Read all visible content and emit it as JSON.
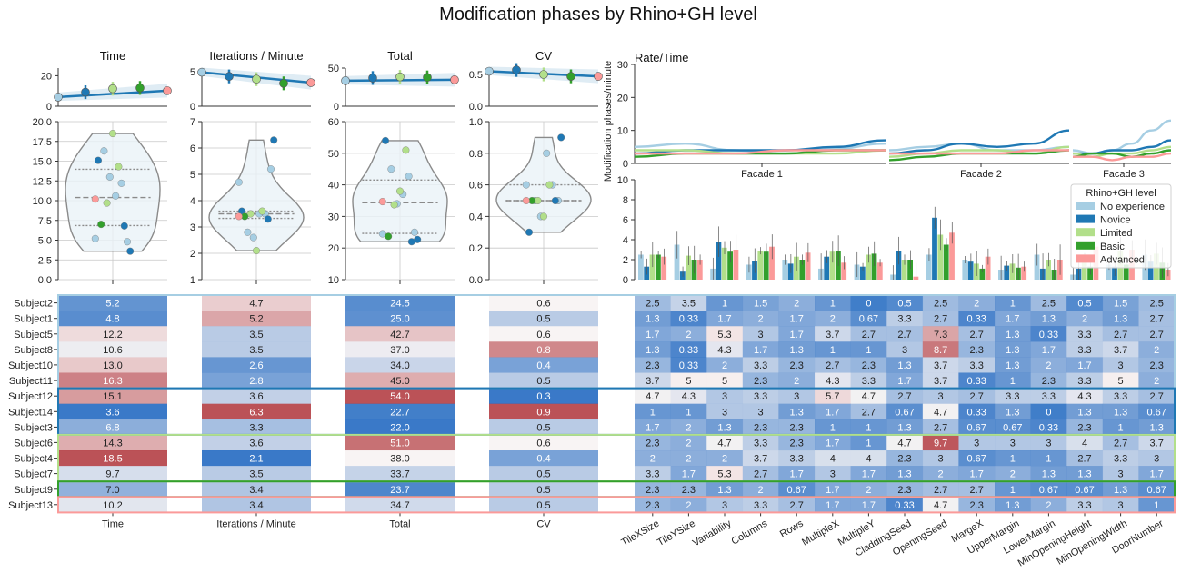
{
  "title": "Modification phases by Rhino+GH level",
  "colors": {
    "No experience": "#a6cee3",
    "Novice": "#1f78b4",
    "Limited": "#b2df8a",
    "Basic": "#33a02c",
    "Advanced": "#fb9a99"
  },
  "legend": {
    "title": "Rhino+GH level",
    "entries": [
      "No experience",
      "Novice",
      "Limited",
      "Basic",
      "Advanced"
    ],
    "placement": "right"
  },
  "chart_data": [
    {
      "id": "violins",
      "type": "violin",
      "panels": [
        {
          "title": "Time",
          "top_yticks": [
            "0",
            "20"
          ],
          "top_ylim": [
            0,
            25
          ],
          "bottom_yticks": [
            "0.0",
            "2.5",
            "5.0",
            "7.5",
            "10.0",
            "12.5",
            "15.0",
            "17.5",
            "20.0"
          ],
          "bottom_ylim": [
            0,
            20
          ]
        },
        {
          "title": "Iterations / Minute",
          "top_yticks": [
            "0",
            "5"
          ],
          "top_ylim": [
            0,
            5.5
          ],
          "bottom_yticks": [
            "1",
            "2",
            "3",
            "4",
            "5",
            "6",
            "7"
          ],
          "bottom_ylim": [
            1,
            7
          ]
        },
        {
          "title": "Total",
          "top_yticks": [
            "0",
            "50"
          ],
          "top_ylim": [
            0,
            50
          ],
          "bottom_yticks": [
            "10",
            "20",
            "30",
            "40",
            "50",
            "60"
          ],
          "bottom_ylim": [
            10,
            60
          ]
        },
        {
          "title": "CV",
          "top_yticks": [
            "0.0",
            "0.5"
          ],
          "top_ylim": [
            0,
            0.6
          ],
          "bottom_yticks": [
            "0.0",
            "0.2",
            "0.4",
            "0.6",
            "0.8",
            "1.0"
          ],
          "bottom_ylim": [
            0,
            1
          ]
        }
      ],
      "group_means": {
        "levels": [
          "No experience",
          "Novice",
          "Limited",
          "Basic",
          "Advanced"
        ],
        "Time": [
          6.0,
          9.2,
          11.5,
          12.0,
          10.2
        ],
        "Iterations / Minute": [
          4.9,
          4.3,
          3.9,
          3.3,
          3.4
        ],
        "Total": [
          33.5,
          37.0,
          38.5,
          37.8,
          34.7
        ],
        "CV": [
          0.55,
          0.57,
          0.5,
          0.47,
          0.47
        ]
      }
    },
    {
      "id": "rate-time",
      "type": "line",
      "title": "Rate/Time",
      "ylabel": "Modification phases/minute",
      "yticks": [
        "0",
        "10",
        "20",
        "30"
      ],
      "ylim": [
        0,
        30
      ],
      "facets": [
        "Facade 1",
        "Facade 2",
        "Facade 3"
      ]
    },
    {
      "id": "params",
      "type": "bar",
      "yticks": [
        "0",
        "2",
        "4",
        "6",
        "8",
        "10"
      ],
      "ylim": [
        0,
        10
      ],
      "categories": [
        "TileXSize",
        "TileYSize",
        "Variability",
        "Columns",
        "Rows",
        "MultipleX",
        "MultipleY",
        "CladdingSeed",
        "OpeningSeed",
        "MargeX",
        "UpperMargin",
        "LowerMargin",
        "MinOpeningHeight",
        "MinOpeningWidth",
        "DoorNumber"
      ],
      "series": [
        {
          "name": "No experience",
          "values": [
            2.5,
            3.5,
            1.1,
            1.5,
            2.0,
            1.1,
            1.5,
            0.5,
            2.5,
            2.0,
            1.0,
            2.5,
            0.5,
            1.5,
            2.5
          ]
        },
        {
          "name": "Novice",
          "values": [
            1.3,
            0.8,
            3.8,
            1.9,
            1.6,
            2.3,
            1.3,
            2.9,
            6.2,
            1.8,
            1.4,
            1.1,
            1.1,
            1.3,
            1.8
          ]
        },
        {
          "name": "Limited",
          "values": [
            2.5,
            2.4,
            3.2,
            2.9,
            2.3,
            2.8,
            2.5,
            2.0,
            4.5,
            1.6,
            1.6,
            2.0,
            2.3,
            2.9,
            2.6
          ]
        },
        {
          "name": "Basic",
          "values": [
            2.5,
            2.0,
            2.8,
            2.8,
            2.0,
            2.9,
            2.6,
            2.0,
            3.5,
            1.1,
            1.2,
            1.0,
            1.3,
            1.5,
            1.7
          ]
        },
        {
          "name": "Advanced",
          "values": [
            2.3,
            2.0,
            3.0,
            3.3,
            2.7,
            1.7,
            1.7,
            0.3,
            4.7,
            2.3,
            1.3,
            2.0,
            3.3,
            3.0,
            1.0
          ]
        }
      ]
    }
  ],
  "table": {
    "subjects": [
      "Subject2",
      "Subject1",
      "Subject5",
      "Subject8",
      "Subject10",
      "Subject11",
      "Subject12",
      "Subject14",
      "Subject3",
      "Subject6",
      "Subject4",
      "Subject7",
      "Subject9",
      "Subject13"
    ],
    "groups": [
      {
        "level": "No experience",
        "rows": 6
      },
      {
        "level": "Novice",
        "rows": 3
      },
      {
        "level": "Limited",
        "rows": 3
      },
      {
        "level": "Basic",
        "rows": 1
      },
      {
        "level": "Advanced",
        "rows": 1
      }
    ],
    "metric_columns": [
      "Time",
      "Iterations / Minute",
      "Total",
      "CV"
    ],
    "metric_values": [
      [
        "5.2",
        "4.7",
        "24.5",
        "0.6"
      ],
      [
        "4.8",
        "5.2",
        "25.0",
        "0.5"
      ],
      [
        "12.2",
        "3.5",
        "42.7",
        "0.6"
      ],
      [
        "10.6",
        "3.5",
        "37.0",
        "0.8"
      ],
      [
        "13.0",
        "2.6",
        "34.0",
        "0.4"
      ],
      [
        "16.3",
        "2.8",
        "45.0",
        "0.5"
      ],
      [
        "15.1",
        "3.6",
        "54.0",
        "0.3"
      ],
      [
        "3.6",
        "6.3",
        "22.7",
        "0.9"
      ],
      [
        "6.8",
        "3.3",
        "22.0",
        "0.5"
      ],
      [
        "14.3",
        "3.6",
        "51.0",
        "0.6"
      ],
      [
        "18.5",
        "2.1",
        "38.0",
        "0.4"
      ],
      [
        "9.7",
        "3.5",
        "33.7",
        "0.5"
      ],
      [
        "7.0",
        "3.4",
        "23.7",
        "0.5"
      ],
      [
        "10.2",
        "3.4",
        "34.7",
        "0.5"
      ]
    ],
    "param_values": [
      [
        "2.5",
        "3.5",
        "1",
        "1.5",
        "2",
        "1",
        "0",
        "0.5",
        "2.5",
        "2",
        "1",
        "2.5",
        "0.5",
        "1.5",
        "2.5"
      ],
      [
        "1.3",
        "0.33",
        "1.7",
        "2",
        "1.7",
        "2",
        "0.67",
        "3.3",
        "2.7",
        "0.33",
        "1.7",
        "1.3",
        "2",
        "1.3",
        "2.7"
      ],
      [
        "1.7",
        "2",
        "5.3",
        "3",
        "1.7",
        "3.7",
        "2.7",
        "2.7",
        "7.3",
        "2.7",
        "1.3",
        "0.33",
        "3.3",
        "2.7",
        "2.7"
      ],
      [
        "1.3",
        "0.33",
        "4.3",
        "1.7",
        "1.3",
        "1",
        "1",
        "3",
        "8.7",
        "2.3",
        "1.3",
        "1.7",
        "3.3",
        "3.7",
        "2"
      ],
      [
        "2.3",
        "0.33",
        "2",
        "3.3",
        "2.3",
        "2.7",
        "2.3",
        "1.3",
        "3.7",
        "3.3",
        "1.3",
        "2",
        "1.7",
        "3",
        "2.3"
      ],
      [
        "3.7",
        "5",
        "5",
        "2.3",
        "2",
        "4.3",
        "3.3",
        "1.7",
        "3.7",
        "0.33",
        "1",
        "2.3",
        "3.3",
        "5",
        "2"
      ],
      [
        "4.7",
        "4.3",
        "3",
        "3.3",
        "3",
        "5.7",
        "4.7",
        "2.7",
        "3",
        "2.7",
        "3.3",
        "3.3",
        "4.3",
        "3.3",
        "2.7"
      ],
      [
        "1",
        "1",
        "3",
        "3",
        "1.3",
        "1.7",
        "2.7",
        "0.67",
        "4.7",
        "0.33",
        "1.3",
        "0",
        "1.3",
        "1.3",
        "0.67"
      ],
      [
        "1.7",
        "2",
        "1.3",
        "2.3",
        "2.3",
        "1",
        "1",
        "1.3",
        "2.7",
        "0.67",
        "0.67",
        "0.33",
        "2.3",
        "1",
        "1.3"
      ],
      [
        "2.3",
        "2",
        "4.7",
        "3.3",
        "2.3",
        "1.7",
        "1",
        "4.7",
        "9.7",
        "3",
        "3",
        "3",
        "4",
        "2.7",
        "3.7"
      ],
      [
        "2",
        "2",
        "2",
        "3.7",
        "3.3",
        "4",
        "4",
        "2.3",
        "3",
        "0.67",
        "1",
        "1",
        "2.7",
        "3.3",
        "3"
      ],
      [
        "3.3",
        "1.7",
        "5.3",
        "2.7",
        "1.7",
        "3",
        "1.7",
        "1.3",
        "2",
        "1.7",
        "2",
        "1.3",
        "1.3",
        "3",
        "1.7"
      ],
      [
        "2.3",
        "2.3",
        "1.3",
        "2",
        "0.67",
        "1.7",
        "2",
        "2.3",
        "2.7",
        "2.7",
        "1",
        "0.67",
        "0.67",
        "1.3",
        "0.67"
      ],
      [
        "2.3",
        "2",
        "3",
        "3.3",
        "2.7",
        "1.7",
        "1.7",
        "0.33",
        "4.7",
        "2.3",
        "1.3",
        "2",
        "3.3",
        "3",
        "1"
      ]
    ]
  }
}
